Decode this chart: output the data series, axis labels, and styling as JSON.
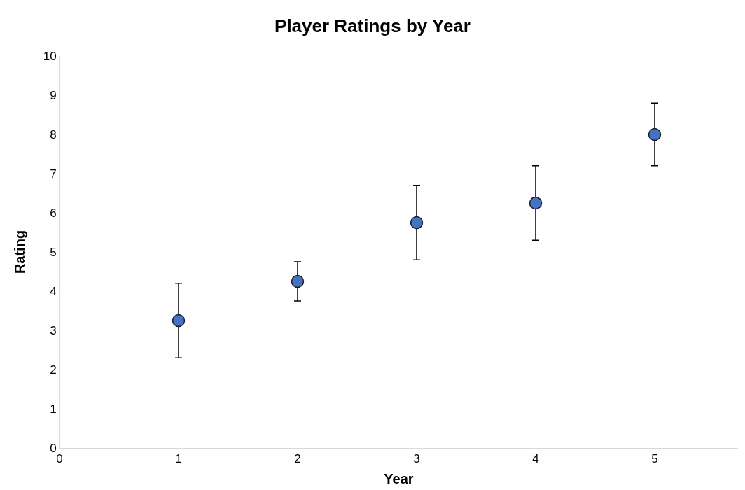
{
  "chart_data": {
    "type": "scatter",
    "title": "Player Ratings by Year",
    "xlabel": "Year",
    "ylabel": "Rating",
    "x": [
      1,
      2,
      3,
      4,
      5
    ],
    "values": [
      3.25,
      4.25,
      5.75,
      6.25,
      8
    ],
    "errors": [
      0.95,
      0.5,
      0.95,
      0.95,
      0.8
    ],
    "color": "#4472c4",
    "marker": "circle",
    "xlim": [
      0,
      5.7
    ],
    "xticks": [
      0,
      1,
      2,
      3,
      4,
      5
    ],
    "ylim": [
      0,
      10
    ],
    "yticks": [
      0,
      1,
      2,
      3,
      4,
      5,
      6,
      7,
      8,
      9,
      10
    ],
    "grid": false,
    "legend": false
  }
}
